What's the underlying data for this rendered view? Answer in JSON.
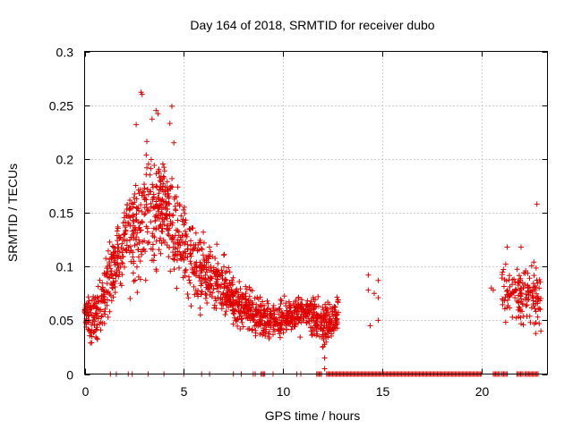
{
  "chart_data": {
    "type": "scatter",
    "title": "Day 164 of 2018, SRMTID for receiver dubo",
    "xlabel": "GPS time / hours",
    "ylabel": "SRMTID / TECUs",
    "xlim": [
      0,
      23.333
    ],
    "ylim": [
      0,
      0.3
    ],
    "x_ticks": [
      0,
      5,
      10,
      15,
      20
    ],
    "y_ticks": [
      0,
      0.05,
      0.1,
      0.15,
      0.2,
      0.25,
      0.3
    ],
    "x_tick_labels": [
      "0",
      "5",
      "10",
      "15",
      "20"
    ],
    "y_tick_labels": [
      "0",
      "0.05",
      "0.1",
      "0.15",
      "0.2",
      "0.25",
      "0.3"
    ],
    "grid": true,
    "marker": "+",
    "color": "#e00000",
    "series": [
      {
        "name": "SRMTID",
        "x_range": [
          0.0,
          23.0
        ],
        "envelope": [
          {
            "x": 0.0,
            "mean": 0.06,
            "spread": 0.022
          },
          {
            "x": 0.5,
            "mean": 0.05,
            "spread": 0.022
          },
          {
            "x": 1.0,
            "mean": 0.075,
            "spread": 0.03
          },
          {
            "x": 1.5,
            "mean": 0.1,
            "spread": 0.035
          },
          {
            "x": 2.0,
            "mean": 0.125,
            "spread": 0.045
          },
          {
            "x": 2.5,
            "mean": 0.14,
            "spread": 0.05
          },
          {
            "x": 3.0,
            "mean": 0.15,
            "spread": 0.055
          },
          {
            "x": 3.5,
            "mean": 0.15,
            "spread": 0.05
          },
          {
            "x": 4.0,
            "mean": 0.15,
            "spread": 0.05
          },
          {
            "x": 4.5,
            "mean": 0.14,
            "spread": 0.045
          },
          {
            "x": 5.0,
            "mean": 0.12,
            "spread": 0.04
          },
          {
            "x": 5.5,
            "mean": 0.1,
            "spread": 0.035
          },
          {
            "x": 6.0,
            "mean": 0.09,
            "spread": 0.03
          },
          {
            "x": 6.5,
            "mean": 0.085,
            "spread": 0.028
          },
          {
            "x": 7.0,
            "mean": 0.08,
            "spread": 0.025
          },
          {
            "x": 7.5,
            "mean": 0.07,
            "spread": 0.022
          },
          {
            "x": 8.0,
            "mean": 0.062,
            "spread": 0.02
          },
          {
            "x": 8.5,
            "mean": 0.058,
            "spread": 0.018
          },
          {
            "x": 9.0,
            "mean": 0.052,
            "spread": 0.018
          },
          {
            "x": 9.5,
            "mean": 0.048,
            "spread": 0.016
          },
          {
            "x": 10.0,
            "mean": 0.052,
            "spread": 0.018
          },
          {
            "x": 10.5,
            "mean": 0.055,
            "spread": 0.018
          },
          {
            "x": 11.0,
            "mean": 0.058,
            "spread": 0.018
          },
          {
            "x": 11.5,
            "mean": 0.055,
            "spread": 0.018
          },
          {
            "x": 12.0,
            "mean": 0.045,
            "spread": 0.022
          },
          {
            "x": 12.5,
            "mean": 0.055,
            "spread": 0.018
          },
          {
            "x": 12.8,
            "mean": 0.055,
            "spread": 0.015
          }
        ],
        "sparse_points": [
          [
            14.3,
            0.092
          ],
          [
            14.3,
            0.078
          ],
          [
            14.4,
            0.045
          ],
          [
            14.6,
            0.075
          ],
          [
            14.8,
            0.087
          ],
          [
            14.8,
            0.071
          ],
          [
            14.8,
            0.05
          ],
          [
            20.5,
            0.08
          ],
          [
            20.6,
            0.078
          ]
        ],
        "late_cluster": {
          "x_range": [
            21.0,
            23.0
          ],
          "mean": 0.072,
          "spread": 0.03
        },
        "outliers": [
          [
            2.85,
            0.262
          ],
          [
            2.9,
            0.26
          ],
          [
            3.4,
            0.237
          ],
          [
            3.6,
            0.245
          ],
          [
            3.7,
            0.242
          ],
          [
            4.4,
            0.249
          ],
          [
            4.3,
            0.233
          ],
          [
            4.5,
            0.215
          ],
          [
            2.6,
            0.232
          ],
          [
            22.8,
            0.158
          ],
          [
            22.0,
            0.118
          ],
          [
            21.3,
            0.118
          ],
          [
            12.1,
            0.005
          ],
          [
            12.1,
            0.015
          ],
          [
            12.0,
            0.025
          ]
        ],
        "zero_markers_ranges": [
          [
            1.3,
            1.3
          ],
          [
            1.6,
            1.6
          ],
          [
            2.2,
            2.2
          ],
          [
            2.4,
            2.4
          ],
          [
            3.2,
            3.2
          ],
          [
            4.0,
            4.0
          ],
          [
            5.0,
            5.0
          ],
          [
            5.9,
            5.9
          ],
          [
            6.3,
            6.3
          ],
          [
            7.5,
            7.5
          ],
          [
            7.9,
            7.9
          ],
          [
            8.5,
            8.5
          ],
          [
            8.6,
            8.6
          ],
          [
            8.9,
            9.1
          ],
          [
            9.5,
            9.5
          ],
          [
            10.7,
            10.7
          ],
          [
            10.9,
            10.9
          ],
          [
            11.7,
            12.0
          ],
          [
            12.2,
            20.0
          ],
          [
            20.6,
            20.9
          ],
          [
            21.0,
            21.3
          ],
          [
            21.8,
            22.1
          ],
          [
            22.2,
            22.9
          ]
        ],
        "n_points_approx": 2100
      }
    ]
  }
}
